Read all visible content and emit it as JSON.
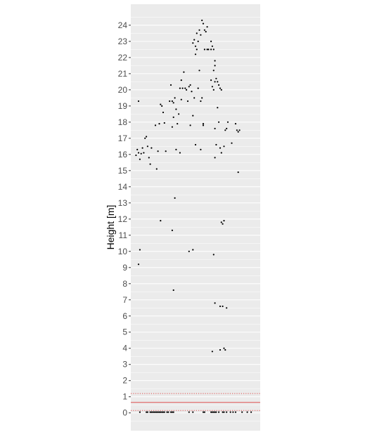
{
  "chart_data": {
    "type": "scatter",
    "ylabel": "Height [m]",
    "xlabel": "",
    "ylim": [
      -1.1,
      25.3
    ],
    "xlim": [
      0,
      1
    ],
    "yticks": [
      0,
      1,
      2,
      3,
      4,
      5,
      6,
      7,
      8,
      9,
      10,
      11,
      12,
      13,
      14,
      15,
      16,
      17,
      18,
      19,
      20,
      21,
      22,
      23,
      24
    ],
    "x_ticks_shown": false,
    "grid": true,
    "legend": "none",
    "reference_lines": [
      {
        "y": 0.65,
        "style": "solid",
        "color": "#e0504f"
      },
      {
        "y": 1.2,
        "style": "dotted",
        "color": "#e0504f"
      },
      {
        "y": 0.15,
        "style": "dotted",
        "color": "#e0504f"
      }
    ],
    "colors": {
      "panel": "#ebebeb",
      "grid": "#ffffff",
      "point": "#000000"
    },
    "points": [
      [
        0.04,
        15.95
      ],
      [
        0.05,
        16.3
      ],
      [
        0.06,
        16.1
      ],
      [
        0.07,
        15.7
      ],
      [
        0.08,
        16.05
      ],
      [
        0.09,
        16.4
      ],
      [
        0.1,
        16.1
      ],
      [
        0.11,
        17.0
      ],
      [
        0.12,
        17.1
      ],
      [
        0.13,
        16.5
      ],
      [
        0.14,
        15.8
      ],
      [
        0.15,
        15.4
      ],
      [
        0.16,
        16.4
      ],
      [
        0.19,
        17.8
      ],
      [
        0.2,
        15.1
      ],
      [
        0.21,
        16.2
      ],
      [
        0.22,
        17.9
      ],
      [
        0.23,
        19.1
      ],
      [
        0.24,
        19.0
      ],
      [
        0.25,
        18.6
      ],
      [
        0.26,
        17.95
      ],
      [
        0.27,
        16.2
      ],
      [
        0.06,
        19.3
      ],
      [
        0.07,
        10.1
      ],
      [
        0.06,
        9.2
      ],
      [
        0.23,
        11.9
      ],
      [
        0.32,
        11.3
      ],
      [
        0.33,
        7.6
      ],
      [
        0.34,
        13.3
      ],
      [
        0.45,
        10.0
      ],
      [
        0.48,
        10.1
      ],
      [
        0.3,
        19.3
      ],
      [
        0.31,
        20.3
      ],
      [
        0.32,
        19.3
      ],
      [
        0.33,
        19.2
      ],
      [
        0.34,
        19.5
      ],
      [
        0.32,
        17.7
      ],
      [
        0.33,
        18.3
      ],
      [
        0.35,
        18.8
      ],
      [
        0.36,
        17.9
      ],
      [
        0.37,
        18.5
      ],
      [
        0.38,
        16.1
      ],
      [
        0.35,
        16.3
      ],
      [
        0.38,
        20.1
      ],
      [
        0.39,
        19.4
      ],
      [
        0.4,
        20.1
      ],
      [
        0.41,
        21.1
      ],
      [
        0.42,
        20.1
      ],
      [
        0.43,
        20.0
      ],
      [
        0.44,
        19.3
      ],
      [
        0.45,
        20.2
      ],
      [
        0.46,
        20.3
      ],
      [
        0.47,
        19.9
      ],
      [
        0.48,
        18.4
      ],
      [
        0.49,
        19.5
      ],
      [
        0.46,
        17.8
      ],
      [
        0.5,
        16.6
      ],
      [
        0.39,
        20.6
      ],
      [
        0.52,
        20.1
      ],
      [
        0.48,
        22.9
      ],
      [
        0.49,
        23.1
      ],
      [
        0.5,
        22.7
      ],
      [
        0.51,
        23.5
      ],
      [
        0.52,
        23.0
      ],
      [
        0.5,
        22.2
      ],
      [
        0.51,
        22.5
      ],
      [
        0.53,
        23.7
      ],
      [
        0.54,
        23.4
      ],
      [
        0.55,
        24.3
      ],
      [
        0.56,
        24.1
      ],
      [
        0.57,
        23.7
      ],
      [
        0.58,
        23.6
      ],
      [
        0.59,
        23.9
      ],
      [
        0.57,
        22.5
      ],
      [
        0.59,
        22.5
      ],
      [
        0.6,
        22.5
      ],
      [
        0.62,
        23.0
      ],
      [
        0.62,
        22.5
      ],
      [
        0.63,
        22.7
      ],
      [
        0.64,
        22.5
      ],
      [
        0.65,
        21.8
      ],
      [
        0.53,
        21.2
      ],
      [
        0.55,
        19.5
      ],
      [
        0.54,
        19.3
      ],
      [
        0.56,
        17.9
      ],
      [
        0.56,
        17.8
      ],
      [
        0.54,
        16.3
      ],
      [
        0.62,
        20.6
      ],
      [
        0.63,
        20.2
      ],
      [
        0.64,
        20.0
      ],
      [
        0.65,
        20.5
      ],
      [
        0.66,
        20.7
      ],
      [
        0.67,
        20.5
      ],
      [
        0.68,
        20.3
      ],
      [
        0.69,
        20.1
      ],
      [
        0.64,
        21.2
      ],
      [
        0.65,
        21.5
      ],
      [
        0.7,
        20.0
      ],
      [
        0.65,
        17.6
      ],
      [
        0.66,
        16.6
      ],
      [
        0.67,
        18.9
      ],
      [
        0.68,
        18.0
      ],
      [
        0.69,
        16.4
      ],
      [
        0.7,
        16.1
      ],
      [
        0.65,
        15.8
      ],
      [
        0.72,
        16.5
      ],
      [
        0.73,
        17.5
      ],
      [
        0.74,
        17.6
      ],
      [
        0.75,
        18.0
      ],
      [
        0.78,
        16.7
      ],
      [
        0.81,
        17.9
      ],
      [
        0.82,
        17.5
      ],
      [
        0.83,
        17.4
      ],
      [
        0.84,
        17.5
      ],
      [
        0.83,
        14.9
      ],
      [
        0.7,
        11.8
      ],
      [
        0.71,
        11.7
      ],
      [
        0.72,
        11.9
      ],
      [
        0.64,
        9.8
      ],
      [
        0.65,
        6.8
      ],
      [
        0.69,
        6.6
      ],
      [
        0.71,
        6.6
      ],
      [
        0.74,
        6.5
      ],
      [
        0.69,
        3.9
      ],
      [
        0.72,
        4.0
      ],
      [
        0.73,
        3.9
      ],
      [
        0.63,
        3.8
      ],
      [
        0.07,
        0.05
      ],
      [
        0.12,
        0.05
      ],
      [
        0.13,
        0.05
      ],
      [
        0.15,
        0.05
      ],
      [
        0.16,
        0.05
      ],
      [
        0.17,
        0.05
      ],
      [
        0.18,
        0.05
      ],
      [
        0.19,
        0.05
      ],
      [
        0.2,
        0.05
      ],
      [
        0.21,
        0.05
      ],
      [
        0.22,
        0.05
      ],
      [
        0.23,
        0.05
      ],
      [
        0.24,
        0.05
      ],
      [
        0.25,
        0.05
      ],
      [
        0.26,
        0.05
      ],
      [
        0.28,
        0.05
      ],
      [
        0.29,
        0.05
      ],
      [
        0.31,
        0.05
      ],
      [
        0.32,
        0.05
      ],
      [
        0.33,
        0.05
      ],
      [
        0.45,
        0.05
      ],
      [
        0.48,
        0.05
      ],
      [
        0.56,
        0.05
      ],
      [
        0.57,
        0.05
      ],
      [
        0.62,
        0.05
      ],
      [
        0.63,
        0.05
      ],
      [
        0.64,
        0.05
      ],
      [
        0.65,
        0.05
      ],
      [
        0.66,
        0.05
      ],
      [
        0.68,
        0.05
      ],
      [
        0.71,
        0.05
      ],
      [
        0.72,
        0.05
      ],
      [
        0.74,
        0.05
      ],
      [
        0.77,
        0.05
      ],
      [
        0.79,
        0.05
      ],
      [
        0.81,
        0.05
      ],
      [
        0.86,
        0.05
      ],
      [
        0.9,
        0.05
      ],
      [
        0.93,
        0.05
      ]
    ]
  }
}
